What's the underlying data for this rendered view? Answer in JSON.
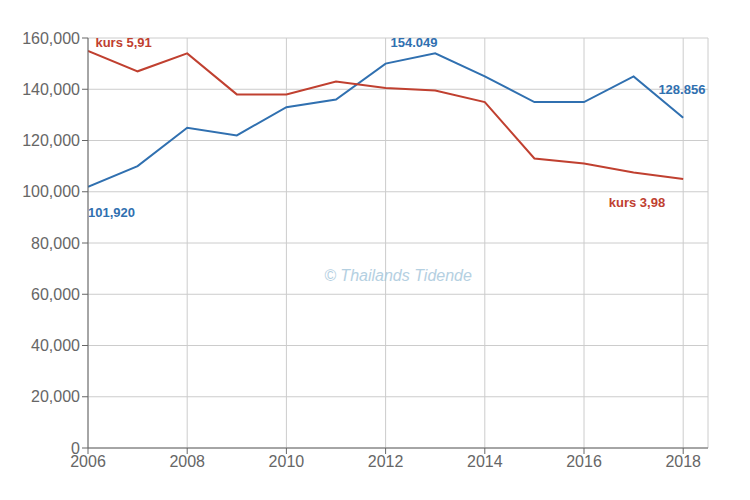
{
  "chart_data": {
    "type": "line",
    "x": [
      2006,
      2007,
      2008,
      2009,
      2010,
      2011,
      2012,
      2013,
      2014,
      2015,
      2016,
      2017,
      2018
    ],
    "series": [
      {
        "color": "#3070b0",
        "values": [
          101920,
          110000,
          125000,
          122000,
          133000,
          136000,
          150000,
          154049,
          145000,
          135000,
          135000,
          145000,
          128856
        ]
      },
      {
        "color": "#c04030",
        "values": [
          155000,
          147000,
          154000,
          138000,
          138000,
          143000,
          140500,
          139500,
          135000,
          113000,
          111000,
          107500,
          105000
        ]
      }
    ],
    "annotations": [
      {
        "text": "101,920",
        "x": 2006,
        "y": 90000,
        "color": "#3070b0"
      },
      {
        "text": "154.049",
        "x": 2012.1,
        "y": 156500,
        "color": "#3070b0"
      },
      {
        "text": "128.856",
        "x": 2017.5,
        "y": 138000,
        "color": "#3070b0"
      },
      {
        "text": "kurs 5,91",
        "x": 2006.15,
        "y": 156500,
        "color": "#c04030"
      },
      {
        "text": "kurs 3,98",
        "x": 2016.5,
        "y": 94000,
        "color": "#c04030"
      }
    ],
    "watermark": {
      "text": "© Thailands Tidende",
      "color": "#a8c8dc"
    },
    "xlim": [
      2006,
      2018.5
    ],
    "xticks": [
      2006,
      2008,
      2010,
      2012,
      2014,
      2016,
      2018
    ],
    "ylim": [
      0,
      160000
    ],
    "yticks": [
      0,
      {
        "value": 20000,
        "label": "20,000"
      },
      {
        "value": 40000,
        "label": "40,000"
      },
      {
        "value": 60000,
        "label": "60,000"
      },
      {
        "value": 80000,
        "label": "80,000"
      },
      {
        "value": 100000,
        "label": "100,000"
      },
      {
        "value": 120000,
        "label": "120,000"
      },
      {
        "value": 140000,
        "label": "140,000"
      },
      {
        "value": 160000,
        "label": "160,000"
      }
    ],
    "grid": true
  }
}
